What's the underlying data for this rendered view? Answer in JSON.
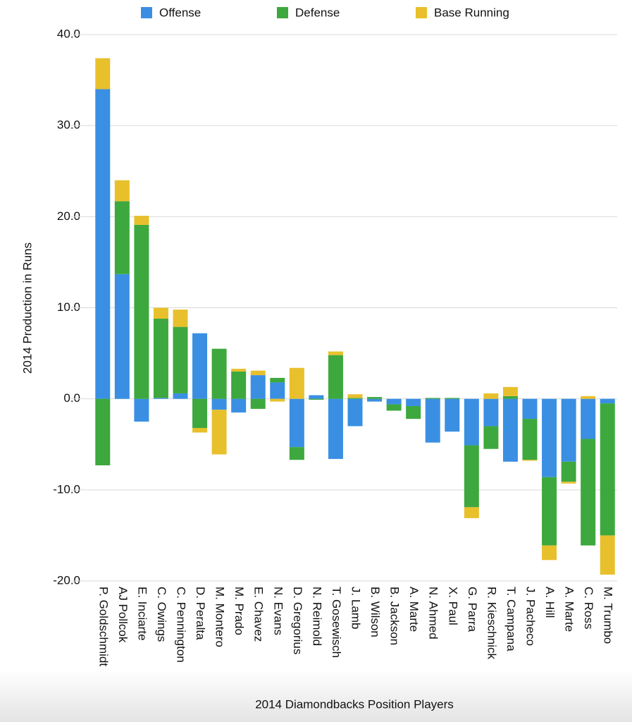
{
  "chart_data": {
    "type": "stacked_bar",
    "y_label": "2014  Production in Runs",
    "x_label": "2014 Diamondbacks Position Players",
    "categories": [
      "P. Goldschmidt",
      "AJ Pollcok",
      "E. Inciarte",
      "C. Owings",
      "C. Pennington",
      "D. Peralta",
      "M. Montero",
      "M. Prado",
      "E. Chavez",
      "N. Evans",
      "D. Gregorius",
      "N. Reimold",
      "T. Gosewisch",
      "J. Lamb",
      "B. Wilson",
      "B. Jackson",
      "A. Marte",
      "N. Ahmed",
      "X. Paul",
      "G. Parra",
      "R. Kieschnick",
      "T. Campana",
      "J. Pacheco",
      "A. Hill",
      "A. Marte",
      "C. Ross",
      "M. Trumbo"
    ],
    "series": [
      {
        "name": "Offense",
        "color": "#3a8fe3",
        "values": [
          34.0,
          13.7,
          -2.5,
          0.1,
          0.6,
          7.2,
          -1.2,
          -1.5,
          2.6,
          1.8,
          -5.3,
          0.4,
          -6.6,
          -3.0,
          -0.3,
          -0.6,
          -0.8,
          -4.8,
          -3.6,
          -5.1,
          -3.0,
          -6.9,
          -2.2,
          -8.6,
          -6.9,
          -4.4,
          -0.5
        ]
      },
      {
        "name": "Defense",
        "color": "#3da83d",
        "values": [
          -7.3,
          8.0,
          19.1,
          8.7,
          7.3,
          -3.2,
          5.5,
          3.0,
          -1.1,
          0.5,
          -1.4,
          -0.1,
          4.8,
          0.1,
          0.2,
          -0.7,
          -1.4,
          0.1,
          0.1,
          -6.8,
          -2.5,
          0.3,
          -4.5,
          -7.5,
          -2.2,
          -11.7,
          -14.5
        ]
      },
      {
        "name": "Base Running",
        "color": "#e8c02c",
        "values": [
          3.4,
          2.3,
          1.0,
          1.2,
          1.9,
          -0.5,
          -4.9,
          0.3,
          0.5,
          -0.3,
          3.4,
          0.0,
          0.4,
          0.4,
          0.0,
          0.0,
          0.0,
          0.0,
          0.0,
          -1.2,
          0.6,
          1.0,
          -0.1,
          -1.6,
          -0.2,
          0.3,
          -4.3
        ]
      }
    ],
    "ylim": [
      -20,
      40
    ],
    "yticks": [
      {
        "value": -20,
        "label": "-20.0"
      },
      {
        "value": -10,
        "label": "-10.0"
      },
      {
        "value": 0,
        "label": "0.0"
      },
      {
        "value": 10,
        "label": "10.0"
      },
      {
        "value": 20,
        "label": "20.0"
      },
      {
        "value": 30,
        "label": "30.0"
      },
      {
        "value": 40,
        "label": "40.0"
      }
    ],
    "grid": true,
    "legend": "top"
  }
}
